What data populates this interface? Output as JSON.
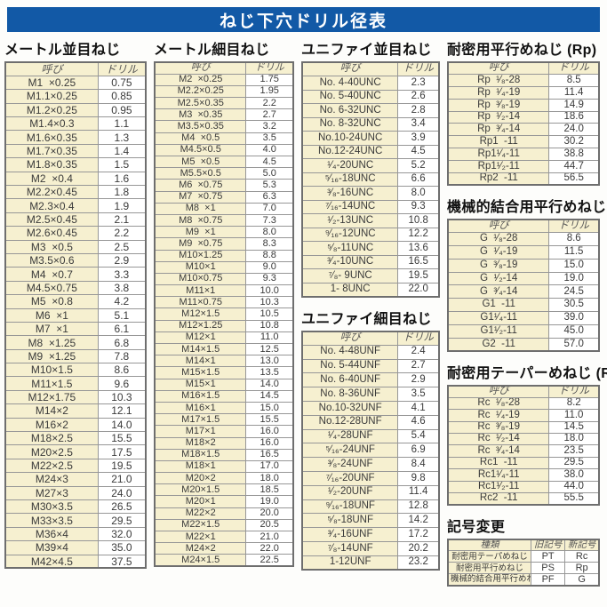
{
  "title": "ねじ下穴ドリル径表",
  "col_headers": {
    "name": "呼び",
    "drill": "ドリル"
  },
  "sections": {
    "metric_coarse": {
      "heading": "メートル並目ねじ",
      "rows": [
        [
          "M1  ×0.25",
          "0.75"
        ],
        [
          "M1.1×0.25",
          "0.85"
        ],
        [
          "M1.2×0.25",
          "0.95"
        ],
        [
          "M1.4×0.3",
          "1.1"
        ],
        [
          "M1.6×0.35",
          "1.3"
        ],
        [
          "M1.7×0.35",
          "1.4"
        ],
        [
          "M1.8×0.35",
          "1.5"
        ],
        [
          "M2  ×0.4",
          "1.6"
        ],
        [
          "M2.2×0.45",
          "1.8"
        ],
        [
          "M2.3×0.4",
          "1.9"
        ],
        [
          "M2.5×0.45",
          "2.1"
        ],
        [
          "M2.6×0.45",
          "2.2"
        ],
        [
          "M3  ×0.5",
          "2.5"
        ],
        [
          "M3.5×0.6",
          "2.9"
        ],
        [
          "M4  ×0.7",
          "3.3"
        ],
        [
          "M4.5×0.75",
          "3.8"
        ],
        [
          "M5  ×0.8",
          "4.2"
        ],
        [
          "M6  ×1",
          "5.1"
        ],
        [
          "M7  ×1",
          "6.1"
        ],
        [
          "M8  ×1.25",
          "6.8"
        ],
        [
          "M9  ×1.25",
          "7.8"
        ],
        [
          "M10×1.5",
          "8.6"
        ],
        [
          "M11×1.5",
          "9.6"
        ],
        [
          "M12×1.75",
          "10.3"
        ],
        [
          "M14×2",
          "12.1"
        ],
        [
          "M16×2",
          "14.0"
        ],
        [
          "M18×2.5",
          "15.5"
        ],
        [
          "M20×2.5",
          "17.5"
        ],
        [
          "M22×2.5",
          "19.5"
        ],
        [
          "M24×3",
          "21.0"
        ],
        [
          "M27×3",
          "24.0"
        ],
        [
          "M30×3.5",
          "26.5"
        ],
        [
          "M33×3.5",
          "29.5"
        ],
        [
          "M36×4",
          "32.0"
        ],
        [
          "M39×4",
          "35.0"
        ],
        [
          "M42×4.5",
          "37.5"
        ]
      ]
    },
    "metric_fine": {
      "heading": "メートル細目ねじ",
      "rows": [
        [
          "M2  ×0.25",
          "1.75"
        ],
        [
          "M2.2×0.25",
          "1.95"
        ],
        [
          "M2.5×0.35",
          "2.2"
        ],
        [
          "M3  ×0.35",
          "2.7"
        ],
        [
          "M3.5×0.35",
          "3.2"
        ],
        [
          "M4  ×0.5",
          "3.5"
        ],
        [
          "M4.5×0.5",
          "4.0"
        ],
        [
          "M5  ×0.5",
          "4.5"
        ],
        [
          "M5.5×0.5",
          "5.0"
        ],
        [
          "M6  ×0.75",
          "5.3"
        ],
        [
          "M7  ×0.75",
          "6.3"
        ],
        [
          "M8  ×1",
          "7.0"
        ],
        [
          "M8  ×0.75",
          "7.3"
        ],
        [
          "M9  ×1",
          "8.0"
        ],
        [
          "M9  ×0.75",
          "8.3"
        ],
        [
          "M10×1.25",
          "8.8"
        ],
        [
          "M10×1",
          "9.0"
        ],
        [
          "M10×0.75",
          "9.3"
        ],
        [
          "M11×1",
          "10.0"
        ],
        [
          "M11×0.75",
          "10.3"
        ],
        [
          "M12×1.5",
          "10.5"
        ],
        [
          "M12×1.25",
          "10.8"
        ],
        [
          "M12×1",
          "11.0"
        ],
        [
          "M14×1.5",
          "12.5"
        ],
        [
          "M14×1",
          "13.0"
        ],
        [
          "M15×1.5",
          "13.5"
        ],
        [
          "M15×1",
          "14.0"
        ],
        [
          "M16×1.5",
          "14.5"
        ],
        [
          "M16×1",
          "15.0"
        ],
        [
          "M17×1.5",
          "15.5"
        ],
        [
          "M17×1",
          "16.0"
        ],
        [
          "M18×2",
          "16.0"
        ],
        [
          "M18×1.5",
          "16.5"
        ],
        [
          "M18×1",
          "17.0"
        ],
        [
          "M20×2",
          "18.0"
        ],
        [
          "M20×1.5",
          "18.5"
        ],
        [
          "M20×1",
          "19.0"
        ],
        [
          "M22×2",
          "20.0"
        ],
        [
          "M22×1.5",
          "20.5"
        ],
        [
          "M22×1",
          "21.0"
        ],
        [
          "M24×2",
          "22.0"
        ],
        [
          "M24×1.5",
          "22.5"
        ]
      ]
    },
    "unified_coarse": {
      "heading": "ユニファイ並目ねじ",
      "rows": [
        [
          "No. 4-40UNC",
          "2.3"
        ],
        [
          "No. 5-40UNC",
          "2.6"
        ],
        [
          "No. 6-32UNC",
          "2.8"
        ],
        [
          "No. 8-32UNC",
          "3.4"
        ],
        [
          "No.10-24UNC",
          "3.9"
        ],
        [
          "No.12-24UNC",
          "4.5"
        ],
        [
          "¹⁄₄-20UNC",
          "5.2"
        ],
        [
          "⁵⁄₁₆-18UNC",
          "6.6"
        ],
        [
          "³⁄₈-16UNC",
          "8.0"
        ],
        [
          "⁷⁄₁₆-14UNC",
          "9.3"
        ],
        [
          "¹⁄₂-13UNC",
          "10.8"
        ],
        [
          "⁹⁄₁₆-12UNC",
          "12.2"
        ],
        [
          "⁵⁄₈-11UNC",
          "13.6"
        ],
        [
          "³⁄₄-10UNC",
          "16.5"
        ],
        [
          "⁷⁄₈- 9UNC",
          "19.5"
        ],
        [
          "1- 8UNC",
          "22.0"
        ]
      ]
    },
    "unified_fine": {
      "heading": "ユニファイ細目ねじ",
      "rows": [
        [
          "No. 4-48UNF",
          "2.4"
        ],
        [
          "No. 5-44UNF",
          "2.7"
        ],
        [
          "No. 6-40UNF",
          "2.9"
        ],
        [
          "No. 8-36UNF",
          "3.5"
        ],
        [
          "No.10-32UNF",
          "4.1"
        ],
        [
          "No.12-28UNF",
          "4.6"
        ],
        [
          "¹⁄₄-28UNF",
          "5.4"
        ],
        [
          "⁵⁄₁₆-24UNF",
          "6.9"
        ],
        [
          "³⁄₈-24UNF",
          "8.4"
        ],
        [
          "⁷⁄₁₆-20UNF",
          "9.8"
        ],
        [
          "¹⁄₂-20UNF",
          "11.4"
        ],
        [
          "⁹⁄₁₆-18UNF",
          "12.8"
        ],
        [
          "⁵⁄₈-18UNF",
          "14.2"
        ],
        [
          "³⁄₄-16UNF",
          "17.2"
        ],
        [
          "⁷⁄₈-14UNF",
          "20.2"
        ],
        [
          "1-12UNF",
          "23.2"
        ]
      ]
    },
    "rp": {
      "heading": "耐密用平行めねじ (Rp)",
      "rows": [
        [
          "Rp  ¹⁄₈-28",
          "8.5"
        ],
        [
          "Rp  ¹⁄₄-19",
          "11.4"
        ],
        [
          "Rp  ³⁄₈-19",
          "14.9"
        ],
        [
          "Rp  ¹⁄₂-14",
          "18.6"
        ],
        [
          "Rp  ³⁄₄-14",
          "24.0"
        ],
        [
          "Rp1  -11",
          "30.2"
        ],
        [
          "Rp1¹⁄₄-11",
          "38.8"
        ],
        [
          "Rp1¹⁄₂-11",
          "44.7"
        ],
        [
          "Rp2  -11",
          "56.5"
        ]
      ]
    },
    "g": {
      "heading": "機械的結合用平行めねじ (G)",
      "rows": [
        [
          "G  ¹⁄₈-28",
          "8.6"
        ],
        [
          "G  ¹⁄₄-19",
          "11.5"
        ],
        [
          "G  ³⁄₈-19",
          "15.0"
        ],
        [
          "G  ¹⁄₂-14",
          "19.0"
        ],
        [
          "G  ³⁄₄-14",
          "24.5"
        ],
        [
          "G1  -11",
          "30.5"
        ],
        [
          "G1¹⁄₄-11",
          "39.0"
        ],
        [
          "G1¹⁄₂-11",
          "45.0"
        ],
        [
          "G2  -11",
          "57.0"
        ]
      ]
    },
    "rc": {
      "heading": "耐密用テーパーめねじ (Rc)",
      "rows": [
        [
          "Rc  ¹⁄₈-28",
          "8.2"
        ],
        [
          "Rc  ¹⁄₄-19",
          "11.0"
        ],
        [
          "Rc  ³⁄₈-19",
          "14.5"
        ],
        [
          "Rc  ¹⁄₂-14",
          "18.0"
        ],
        [
          "Rc  ³⁄₄-14",
          "23.5"
        ],
        [
          "Rc1  -11",
          "29.5"
        ],
        [
          "Rc1¹⁄₄-11",
          "38.0"
        ],
        [
          "Rc1¹⁄₂-11",
          "44.0"
        ],
        [
          "Rc2  -11",
          "55.5"
        ]
      ]
    },
    "symbol_change": {
      "heading": "記号変更",
      "headers": [
        "種類",
        "旧記号",
        "新記号"
      ],
      "rows": [
        [
          "耐密用テーパめねじ",
          "PT",
          "Rc"
        ],
        [
          "耐密用平行めねじ",
          "PS",
          "Rp"
        ],
        [
          "機械的結合用平行めねじ",
          "PF",
          "G"
        ]
      ]
    }
  },
  "colors": {
    "title_bar": "#1259a6",
    "cell_cream": "#f6f0d0",
    "border_gray": "#979797"
  }
}
